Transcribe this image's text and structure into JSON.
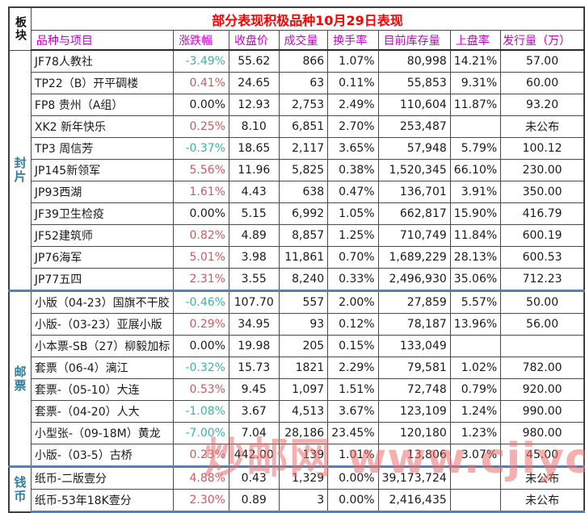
{
  "title": "部分表现积极品种10月29日表现",
  "watermark": "炒邮网 www.cjiyou.net",
  "columns": {
    "block": "板块",
    "name": "品种与项目",
    "change": "涨跌幅",
    "close": "收盘价",
    "volume": "成交量",
    "turnover": "换手率",
    "inventory": "目前库存量",
    "listed": "上盘率",
    "issue": "发行量（万）"
  },
  "colors": {
    "title": "#ff0000",
    "header": "#cc00cc",
    "section_label": "#2f7f9f",
    "negative": "#3ab5a5",
    "positive": "#cf5a62",
    "section_divider": "#4F81BD"
  },
  "sections": [
    {
      "label": "封片",
      "rows": [
        {
          "name": "JF78人教社",
          "change": "-3.49%",
          "close": "55.62",
          "volume": "866",
          "turnover": "1.07%",
          "inventory": "80,998",
          "listed": "14.21%",
          "issue": "57.00"
        },
        {
          "name": "TP22（B）开平碉楼",
          "change": "0.41%",
          "close": "24.65",
          "volume": "63",
          "turnover": "0.11%",
          "inventory": "55,853",
          "listed": "9.31%",
          "issue": "60.00"
        },
        {
          "name": "FP8 贵州（A组）",
          "change": "0.00%",
          "close": "12.93",
          "volume": "2,753",
          "turnover": "2.49%",
          "inventory": "110,604",
          "listed": "11.87%",
          "issue": "93.20"
        },
        {
          "name": "XK2 新年快乐",
          "change": "0.25%",
          "close": "8.10",
          "volume": "6,851",
          "turnover": "2.70%",
          "inventory": "253,487",
          "listed": "",
          "issue": "未公布"
        },
        {
          "name": "TP3 周信芳",
          "change": "-0.37%",
          "close": "18.65",
          "volume": "2,117",
          "turnover": "3.65%",
          "inventory": "57,948",
          "listed": "5.79%",
          "issue": "100.12"
        },
        {
          "name": "JP145新领军",
          "change": "5.56%",
          "close": "11.96",
          "volume": "5,825",
          "turnover": "0.38%",
          "inventory": "1,520,345",
          "listed": "66.10%",
          "issue": "230.00"
        },
        {
          "name": "JP93西湖",
          "change": "1.61%",
          "close": "4.43",
          "volume": "638",
          "turnover": "0.47%",
          "inventory": "136,701",
          "listed": "3.91%",
          "issue": "350.00"
        },
        {
          "name": "JF39卫生检疫",
          "change": "0.00%",
          "close": "5.15",
          "volume": "6,992",
          "turnover": "1.05%",
          "inventory": "662,817",
          "listed": "15.90%",
          "issue": "416.79"
        },
        {
          "name": "JF52建筑师",
          "change": "0.82%",
          "close": "4.89",
          "volume": "8,857",
          "turnover": "1.25%",
          "inventory": "710,749",
          "listed": "11.84%",
          "issue": "600.19"
        },
        {
          "name": "JP76海军",
          "change": "5.01%",
          "close": "3.98",
          "volume": "11,861",
          "turnover": "0.70%",
          "inventory": "1,689,229",
          "listed": "28.13%",
          "issue": "600.53"
        },
        {
          "name": "JP77五四",
          "change": "2.31%",
          "close": "3.55",
          "volume": "8,240",
          "turnover": "0.33%",
          "inventory": "2,496,930",
          "listed": "35.06%",
          "issue": "712.23"
        }
      ]
    },
    {
      "label": "邮票",
      "rows": [
        {
          "name": "小版（04-23）国旗不干胶",
          "change": "-0.46%",
          "close": "107.70",
          "volume": "557",
          "turnover": "2.00%",
          "inventory": "27,859",
          "listed": "5.57%",
          "issue": "50.00"
        },
        {
          "name": "小版-（03-23）亚展小版",
          "change": "0.29%",
          "close": "34.95",
          "volume": "93",
          "turnover": "0.12%",
          "inventory": "78,187",
          "listed": "13.96%",
          "issue": "56.00"
        },
        {
          "name": "小本票-SB（27）柳毅加标",
          "change": "0.00%",
          "close": "19.98",
          "volume": "205",
          "turnover": "0.15%",
          "inventory": "133,049",
          "listed": "",
          "issue": ""
        },
        {
          "name": "套票（06-4）漓江",
          "change": "-0.32%",
          "close": "15.73",
          "volume": "1821",
          "turnover": "2.29%",
          "inventory": "79,581",
          "listed": "1.02%",
          "issue": "782.00"
        },
        {
          "name": "套票-（05-10）大连",
          "change": "0.53%",
          "close": "9.45",
          "volume": "1,097",
          "turnover": "1.51%",
          "inventory": "72,748",
          "listed": "0.79%",
          "issue": "920.00"
        },
        {
          "name": "套票-（04-20）人大",
          "change": "-1.08%",
          "close": "3.67",
          "volume": "4,513",
          "turnover": "3.67%",
          "inventory": "123,109",
          "listed": "1.24%",
          "issue": "990.00"
        },
        {
          "name": "小型张-（09-18M）黄龙",
          "change": "-7.00%",
          "close": "7.04",
          "volume": "28,186",
          "turnover": "23.45%",
          "inventory": "120,180",
          "listed": "1.23%",
          "issue": "980.00"
        },
        {
          "name": "小版-（03-5）古桥",
          "change": "0.23%",
          "close": "442.00",
          "volume": "139",
          "turnover": "1.01%",
          "inventory": "13,806",
          "listed": "3.07%",
          "issue": "45.00"
        }
      ]
    },
    {
      "label": "钱币",
      "rows": [
        {
          "name": "纸币-二版壹分",
          "change": "4.88%",
          "close": "0.43",
          "volume": "1,329",
          "turnover": "0.00%",
          "inventory": "39,173,724",
          "listed": "",
          "issue": "未公布"
        },
        {
          "name": "纸币-53年18K壹分",
          "change": "2.30%",
          "close": "0.89",
          "volume": "3",
          "turnover": "0.00%",
          "inventory": "2,416,435",
          "listed": "",
          "issue": "未公布"
        }
      ]
    }
  ]
}
